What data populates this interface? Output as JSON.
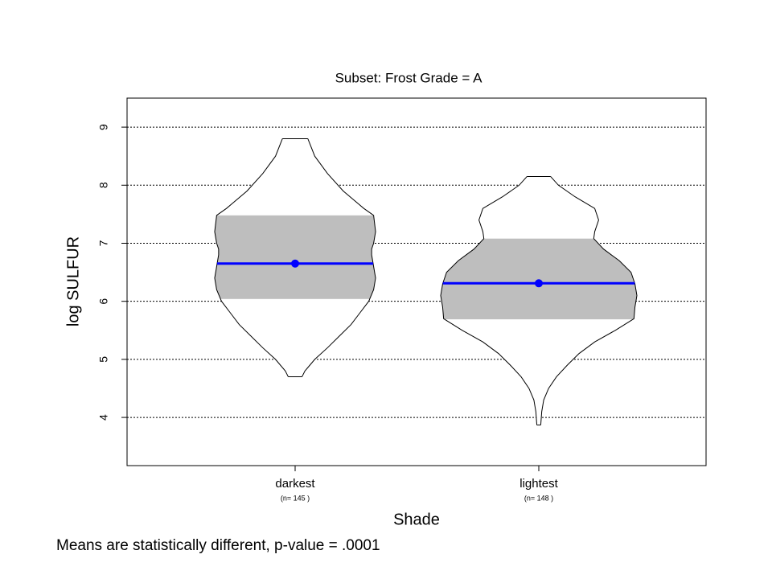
{
  "chart_data": {
    "type": "violin",
    "title": "Subset:  Frost Grade = A",
    "xlabel": "Shade",
    "ylabel": "log SULFUR",
    "footnote": "Means are statistically different,   p-value  = .0001",
    "categories": [
      "darkest",
      "lightest"
    ],
    "n_labels": [
      "(n= 145 )",
      "(n= 148 )"
    ],
    "ylim": [
      3.17,
      9.5
    ],
    "yticks": [
      4,
      5,
      6,
      7,
      8,
      9
    ],
    "grid": true,
    "band_color": "#bebebe",
    "mean_color": "#0000ff",
    "series": [
      {
        "name": "darkest",
        "mean": 6.65,
        "q1": 6.04,
        "q3": 7.48,
        "density": {
          "y": [
            8.8,
            8.5,
            8.2,
            7.9,
            7.6,
            7.48,
            7.2,
            7.0,
            6.9,
            6.8,
            6.6,
            6.4,
            6.2,
            6.0,
            5.8,
            5.6,
            5.4,
            5.2,
            5.0,
            4.8,
            4.7
          ],
          "width": [
            0.13,
            0.2,
            0.33,
            0.49,
            0.7,
            0.8,
            0.82,
            0.8,
            0.78,
            0.78,
            0.8,
            0.82,
            0.8,
            0.75,
            0.66,
            0.57,
            0.45,
            0.33,
            0.2,
            0.1,
            0.07
          ]
        }
      },
      {
        "name": "lightest",
        "mean": 6.31,
        "q1": 5.69,
        "q3": 7.08,
        "density": {
          "y": [
            8.15,
            8.0,
            7.8,
            7.6,
            7.4,
            7.2,
            7.08,
            6.9,
            6.7,
            6.5,
            6.3,
            6.1,
            5.9,
            5.7,
            5.5,
            5.3,
            5.1,
            4.9,
            4.7,
            4.5,
            4.3,
            4.1,
            3.87
          ],
          "width": [
            0.12,
            0.2,
            0.37,
            0.57,
            0.61,
            0.57,
            0.56,
            0.66,
            0.82,
            0.94,
            0.98,
            1,
            0.98,
            0.97,
            0.78,
            0.57,
            0.41,
            0.29,
            0.18,
            0.1,
            0.05,
            0.03,
            0.02
          ]
        }
      }
    ]
  }
}
